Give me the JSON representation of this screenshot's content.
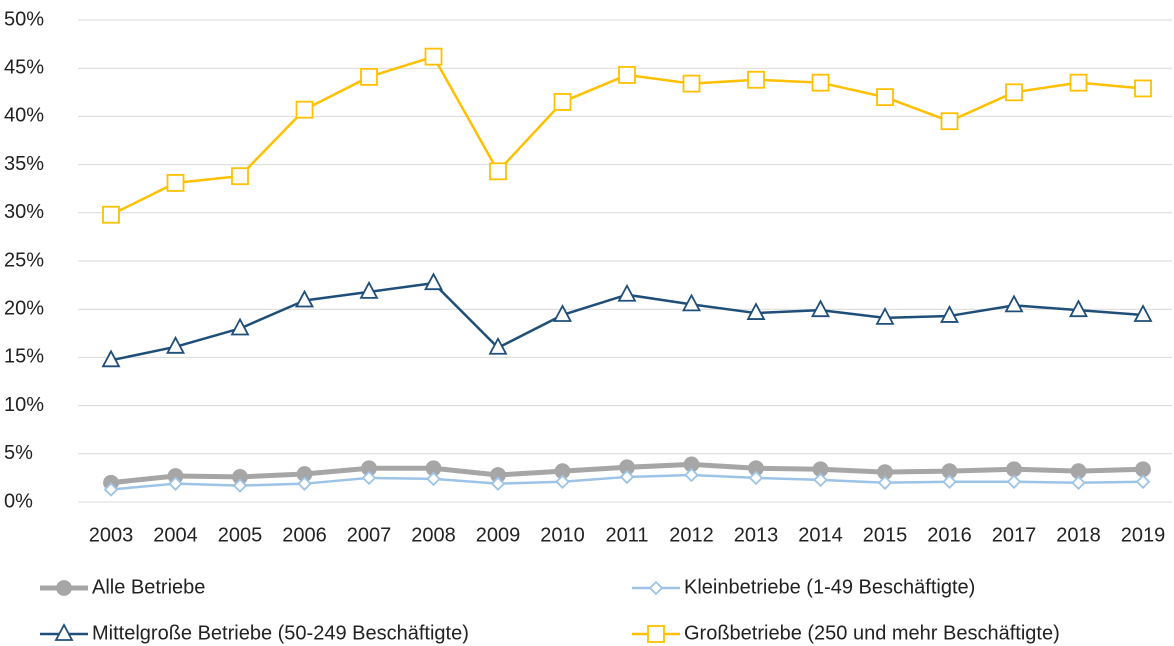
{
  "chart_data": {
    "type": "line",
    "categories": [
      "2003",
      "2004",
      "2005",
      "2006",
      "2007",
      "2008",
      "2009",
      "2010",
      "2011",
      "2012",
      "2013",
      "2014",
      "2015",
      "2016",
      "2017",
      "2018",
      "2019"
    ],
    "series": [
      {
        "name": "Alle Betriebe",
        "color": "#a6a6a6",
        "marker": "circle",
        "values": [
          2.0,
          2.7,
          2.6,
          2.9,
          3.5,
          3.5,
          2.8,
          3.2,
          3.6,
          3.9,
          3.5,
          3.4,
          3.1,
          3.2,
          3.4,
          3.2,
          3.4
        ]
      },
      {
        "name": "Kleinbetriebe  (1-49 Beschäftigte)",
        "color": "#9dc3e6",
        "marker": "diamond",
        "values": [
          1.3,
          1.9,
          1.7,
          1.9,
          2.5,
          2.4,
          1.9,
          2.1,
          2.6,
          2.8,
          2.5,
          2.3,
          2.0,
          2.1,
          2.1,
          2.0,
          2.1
        ]
      },
      {
        "name": "Mittelgroße Betriebe (50-249 Beschäftigte)",
        "color": "#1f4e79",
        "marker": "triangle",
        "values": [
          14.7,
          16.1,
          18.0,
          20.9,
          21.8,
          22.7,
          16.0,
          19.4,
          21.5,
          20.5,
          19.6,
          19.9,
          19.1,
          19.3,
          20.4,
          19.9,
          19.4
        ]
      },
      {
        "name": "Großbetriebe (250 und mehr Beschäftigte)",
        "color": "#ffc000",
        "marker": "square",
        "values": [
          29.8,
          33.1,
          33.8,
          40.7,
          44.1,
          46.2,
          34.3,
          41.5,
          44.3,
          43.4,
          43.8,
          43.5,
          42.0,
          39.5,
          42.5,
          43.5,
          42.9
        ]
      }
    ],
    "ylim": [
      0,
      50
    ],
    "yticks": [
      {
        "value": 0,
        "label": "0%"
      },
      {
        "value": 5,
        "label": "5%"
      },
      {
        "value": 10,
        "label": "10%"
      },
      {
        "value": 15,
        "label": "15%"
      },
      {
        "value": 20,
        "label": "20%"
      },
      {
        "value": 25,
        "label": "25%"
      },
      {
        "value": 30,
        "label": "30%"
      },
      {
        "value": 35,
        "label": "35%"
      },
      {
        "value": 40,
        "label": "40%"
      },
      {
        "value": 45,
        "label": "45%"
      },
      {
        "value": 50,
        "label": "50%"
      }
    ],
    "grid": true
  }
}
